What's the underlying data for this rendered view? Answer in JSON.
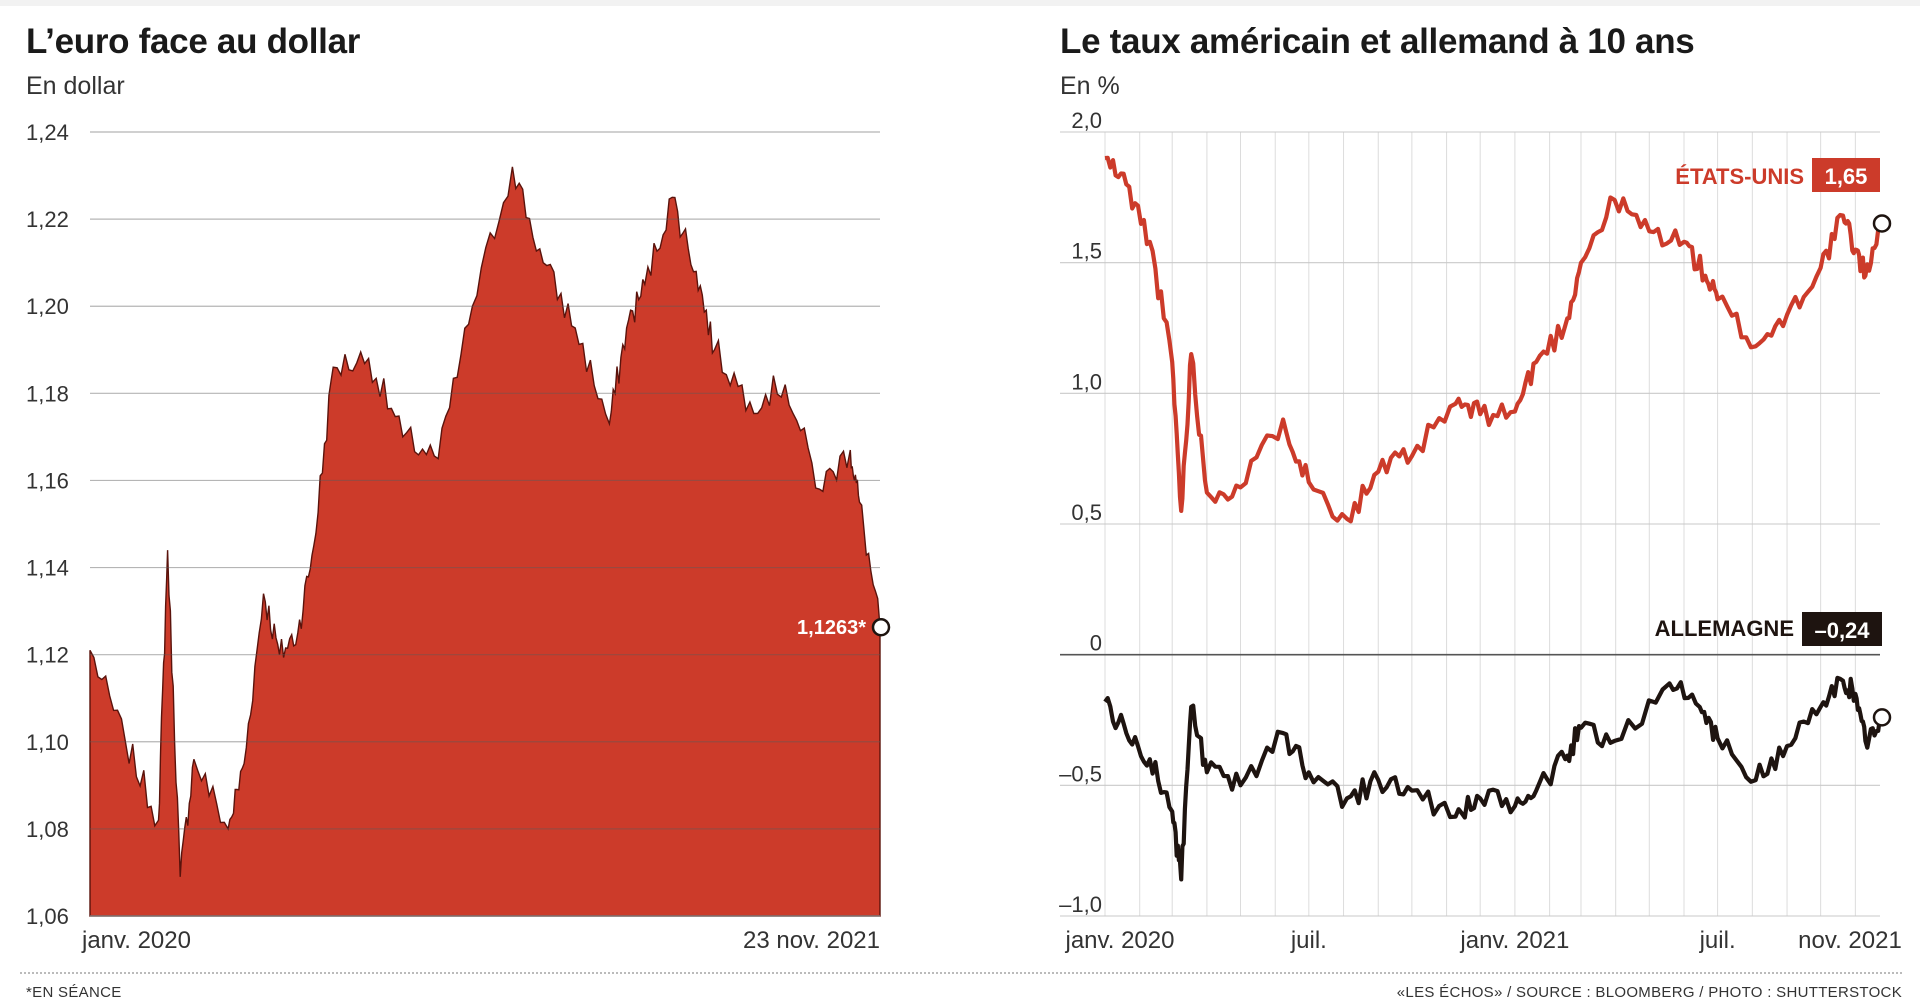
{
  "footnote": "*EN SÉANCE",
  "source": "«LES ÉCHOS» / SOURCE : BLOOMBERG / PHOTO : SHUTTERSTOCK",
  "colors": {
    "red": "#cc3b2a",
    "dark": "#1e1410",
    "grid": "#c9c9c9"
  },
  "chart_data": [
    {
      "type": "area",
      "title": "L’euro face au dollar",
      "subtitle": "En dollar",
      "ylim": [
        1.06,
        1.24
      ],
      "yticks": [
        "1,06",
        "1,08",
        "1,10",
        "1,12",
        "1,14",
        "1,16",
        "1,18",
        "1,20",
        "1,22",
        "1,24"
      ],
      "xticks": [
        "janv. 2020",
        "23 nov. 2021"
      ],
      "series": [
        {
          "x": [
            "2020-01-01",
            "2020-02-01",
            "2020-03-01",
            "2020-03-09",
            "2020-03-20",
            "2020-04-01",
            "2020-05-01",
            "2020-05-15",
            "2020-06-01",
            "2020-06-15",
            "2020-07-01",
            "2020-07-15",
            "2020-08-01",
            "2020-09-01",
            "2020-10-01",
            "2020-11-01",
            "2020-12-01",
            "2021-01-05",
            "2021-02-01",
            "2021-03-01",
            "2021-03-31",
            "2021-04-15",
            "2021-05-01",
            "2021-05-25",
            "2021-06-15",
            "2021-07-01",
            "2021-08-01",
            "2021-09-01",
            "2021-10-01",
            "2021-10-28",
            "2021-11-05",
            "2021-11-23"
          ],
          "values": [
            1.121,
            1.1,
            1.082,
            1.144,
            1.069,
            1.096,
            1.08,
            1.095,
            1.134,
            1.12,
            1.125,
            1.145,
            1.186,
            1.188,
            1.17,
            1.165,
            1.2,
            1.232,
            1.21,
            1.195,
            1.173,
            1.195,
            1.205,
            1.225,
            1.208,
            1.19,
            1.178,
            1.182,
            1.158,
            1.167,
            1.155,
            1.1263
          ]
        }
      ],
      "end_label": "1,1263*"
    },
    {
      "type": "line",
      "title": "Le taux américain et allemand à 10 ans",
      "subtitle": "En %",
      "ylim": [
        -1.0,
        2.0
      ],
      "yticks": [
        "–1,0",
        "–0,5",
        "0",
        "0,5",
        "1,0",
        "1,5",
        "2,0"
      ],
      "xticks": [
        "janv. 2020",
        "juil.",
        "janv. 2021",
        "juil.",
        "nov. 2021"
      ],
      "series": [
        {
          "name": "ÉTATS-UNIS",
          "end_value_label": "1,65",
          "x": [
            "2020-01-01",
            "2020-01-20",
            "2020-02-10",
            "2020-03-01",
            "2020-03-09",
            "2020-03-18",
            "2020-04-01",
            "2020-05-01",
            "2020-06-08",
            "2020-07-01",
            "2020-08-04",
            "2020-09-01",
            "2020-10-01",
            "2020-11-09",
            "2020-12-01",
            "2021-01-01",
            "2021-01-20",
            "2021-02-15",
            "2021-03-01",
            "2021-03-31",
            "2021-05-01",
            "2021-06-01",
            "2021-06-20",
            "2021-07-01",
            "2021-08-04",
            "2021-09-01",
            "2021-10-01",
            "2021-10-21",
            "2021-11-01",
            "2021-11-10",
            "2021-11-23"
          ],
          "values": [
            1.9,
            1.8,
            1.58,
            1.12,
            0.55,
            1.15,
            0.62,
            0.64,
            0.9,
            0.66,
            0.52,
            0.7,
            0.76,
            0.96,
            0.92,
            0.93,
            1.12,
            1.26,
            1.5,
            1.74,
            1.62,
            1.58,
            1.45,
            1.36,
            1.18,
            1.3,
            1.48,
            1.68,
            1.55,
            1.45,
            1.65
          ]
        },
        {
          "name": "ALLEMAGNE",
          "end_value_label": "–0,24",
          "x": [
            "2020-01-01",
            "2020-01-20",
            "2020-02-10",
            "2020-03-01",
            "2020-03-09",
            "2020-03-18",
            "2020-04-01",
            "2020-05-01",
            "2020-06-08",
            "2020-07-01",
            "2020-08-04",
            "2020-09-01",
            "2020-10-01",
            "2020-11-09",
            "2020-12-01",
            "2021-01-01",
            "2021-01-20",
            "2021-02-15",
            "2021-03-01",
            "2021-03-31",
            "2021-05-19",
            "2021-06-15",
            "2021-07-01",
            "2021-08-04",
            "2021-09-01",
            "2021-10-01",
            "2021-10-21",
            "2021-11-01",
            "2021-11-10",
            "2021-11-23"
          ],
          "values": [
            -0.18,
            -0.3,
            -0.4,
            -0.6,
            -0.86,
            -0.2,
            -0.45,
            -0.5,
            -0.3,
            -0.45,
            -0.55,
            -0.48,
            -0.52,
            -0.62,
            -0.55,
            -0.58,
            -0.52,
            -0.4,
            -0.28,
            -0.33,
            -0.11,
            -0.2,
            -0.32,
            -0.48,
            -0.35,
            -0.2,
            -0.1,
            -0.15,
            -0.33,
            -0.24
          ]
        }
      ]
    }
  ]
}
